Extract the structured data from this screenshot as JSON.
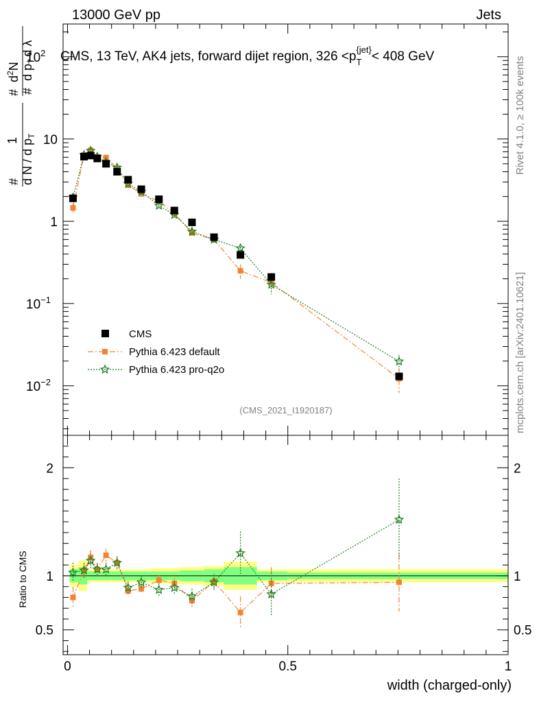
{
  "header": {
    "energy": "13000 GeV pp",
    "category": "Jets"
  },
  "side_labels": {
    "rivet": "Rivet 4.1.0, ≥ 100k events",
    "mcplots": "mcplots.cern.ch [arXiv:2401.10621]"
  },
  "chart_data": {
    "type": "scatter",
    "title": "CMS, 13 TeV, AK4 jets, forward dijet region, 326 <p_T^{jet}< 408 GeV",
    "title_parts": {
      "main": "CMS, 13 TeV, AK4 jets, forward dijet region, 326 <p",
      "sub": "T",
      "sup": "{jet}",
      "end": "< 408 GeV"
    },
    "analysis_id": "(CMS_2021_I1920187)",
    "xlabel": "width (charged-only)",
    "xlim": [
      -0.01,
      1.0
    ],
    "x_ticks": [
      "0",
      "0.5",
      "1"
    ],
    "top_panel": {
      "yscale": "log",
      "ylim": [
        0.0025,
        250
      ],
      "ylabel_parts": [
        "1",
        "d N / d p",
        "T",
        "d",
        "2",
        "N",
        "d p",
        "T",
        "d λ"
      ],
      "y_ticks": [
        {
          "value": 100,
          "base": "10",
          "exp": "2"
        },
        {
          "value": 10,
          "base": "10",
          "exp": ""
        },
        {
          "value": 1,
          "base": "1",
          "exp": ""
        },
        {
          "value": 0.1,
          "base": "10",
          "exp": "−1"
        },
        {
          "value": 0.01,
          "base": "10",
          "exp": "−2"
        }
      ]
    },
    "ratio_panel": {
      "ylabel": "Ratio to CMS",
      "ylim": [
        0.27,
        2.3
      ],
      "y_ticks": [
        "0.5",
        "1",
        "2"
      ],
      "y_tick_values": [
        0.5,
        1,
        2
      ]
    },
    "x": [
      0.0125,
      0.0375,
      0.0525,
      0.0675,
      0.0875,
      0.1125,
      0.1375,
      0.1675,
      0.2075,
      0.2425,
      0.2825,
      0.3325,
      0.3925,
      0.4625,
      0.7525
    ],
    "x_edges": [
      0.005,
      0.025,
      0.045,
      0.06,
      0.075,
      0.1,
      0.125,
      0.15,
      0.185,
      0.23,
      0.255,
      0.31,
      0.355,
      0.43,
      0.5,
      1.0
    ],
    "series": [
      {
        "name": "CMS",
        "color": "#000000",
        "marker": "square",
        "values": [
          1.9,
          6.1,
          6.3,
          5.8,
          5.0,
          4.0,
          3.2,
          2.45,
          1.85,
          1.35,
          0.97,
          0.64,
          0.39,
          0.21,
          0.013
        ],
        "ratio_band_inner": [
          0.06,
          0.08,
          0.04,
          0.04,
          0.04,
          0.04,
          0.04,
          0.04,
          0.04,
          0.04,
          0.05,
          0.06,
          0.08,
          0.04,
          0.03
        ],
        "ratio_band_outer": [
          0.1,
          0.14,
          0.06,
          0.06,
          0.06,
          0.06,
          0.06,
          0.06,
          0.07,
          0.07,
          0.08,
          0.09,
          0.13,
          0.06,
          0.06
        ]
      },
      {
        "name": "Pythia 6.423 default",
        "color": "#f58231",
        "marker": "square",
        "dash": "8,3,2,3",
        "values": [
          1.45,
          6.4,
          7.3,
          6.1,
          5.95,
          4.4,
          2.75,
          2.15,
          1.75,
          1.25,
          0.72,
          0.6,
          0.25,
          0.18,
          0.0122
        ],
        "errors": [
          0.2,
          0.4,
          0.4,
          0.3,
          0.3,
          0.25,
          0.15,
          0.12,
          0.1,
          0.08,
          0.06,
          0.05,
          0.05,
          0.03,
          0.004
        ],
        "ratio": [
          0.8,
          1.05,
          1.17,
          1.06,
          1.19,
          1.12,
          0.86,
          0.88,
          0.96,
          0.93,
          0.77,
          0.95,
          0.66,
          0.93,
          0.94
        ],
        "ratio_errors": [
          0.1,
          0.07,
          0.07,
          0.06,
          0.06,
          0.06,
          0.05,
          0.05,
          0.05,
          0.05,
          0.06,
          0.07,
          0.15,
          0.15,
          0.27
        ]
      },
      {
        "name": "Pythia 6.423 pro-q2o",
        "color": "#1f7f1f",
        "marker": "star",
        "dash": "2,2",
        "values": [
          1.95,
          6.4,
          7.2,
          6.1,
          5.2,
          4.5,
          2.85,
          2.3,
          1.55,
          1.2,
          0.75,
          0.6,
          0.47,
          0.17,
          0.0198
        ],
        "errors": [
          0.25,
          0.4,
          0.4,
          0.3,
          0.3,
          0.25,
          0.15,
          0.12,
          0.1,
          0.08,
          0.06,
          0.05,
          0.06,
          0.04,
          0.004
        ],
        "ratio": [
          1.03,
          1.05,
          1.14,
          1.06,
          1.06,
          1.12,
          0.89,
          0.94,
          0.87,
          0.89,
          0.81,
          0.94,
          1.21,
          0.83,
          1.52
        ],
        "ratio_errors": [
          0.09,
          0.07,
          0.07,
          0.06,
          0.06,
          0.06,
          0.06,
          0.06,
          0.06,
          0.06,
          0.07,
          0.07,
          0.2,
          0.2,
          0.38
        ]
      }
    ]
  }
}
